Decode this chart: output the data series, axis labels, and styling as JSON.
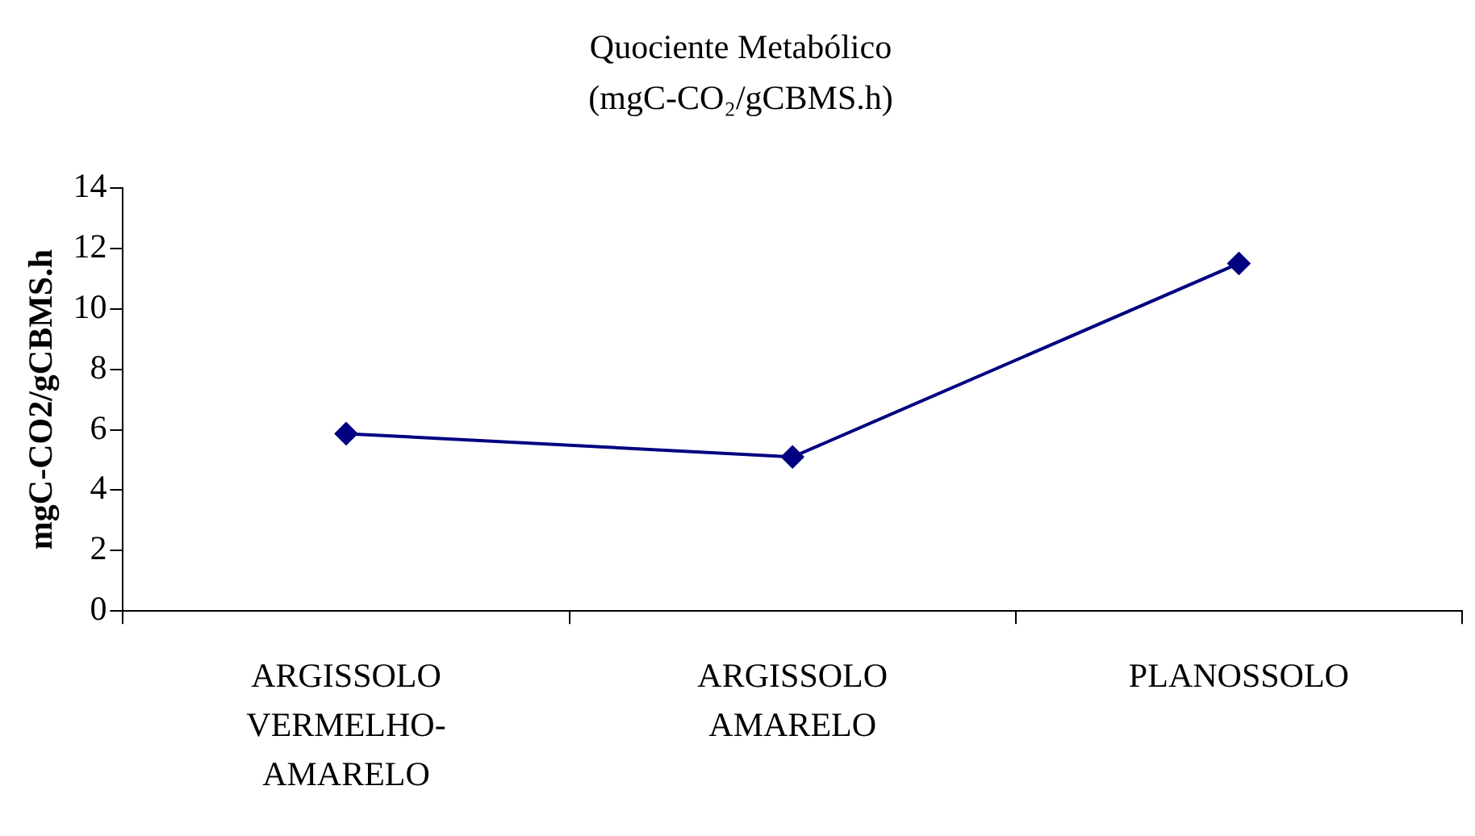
{
  "chart_data": {
    "type": "line",
    "title": "Quociente Metabólico",
    "subtitle": "(mgC-CO₂/gCBMS.h)",
    "ylabel": "mgC-CO2/gCBMS.h",
    "categories": [
      "ARGISSOLO VERMELHO-AMARELO",
      "ARGISSOLO AMARELO",
      "PLANOSSOLO"
    ],
    "series": [
      {
        "color": "#000080",
        "values": [
          5.87,
          5.1,
          11.5
        ]
      }
    ],
    "ylim": [
      0,
      14
    ],
    "yticks": [
      0,
      2,
      4,
      6,
      8,
      10,
      12,
      14
    ],
    "grid": false,
    "legend": false,
    "marker": "diamond",
    "line_style": "solid"
  }
}
